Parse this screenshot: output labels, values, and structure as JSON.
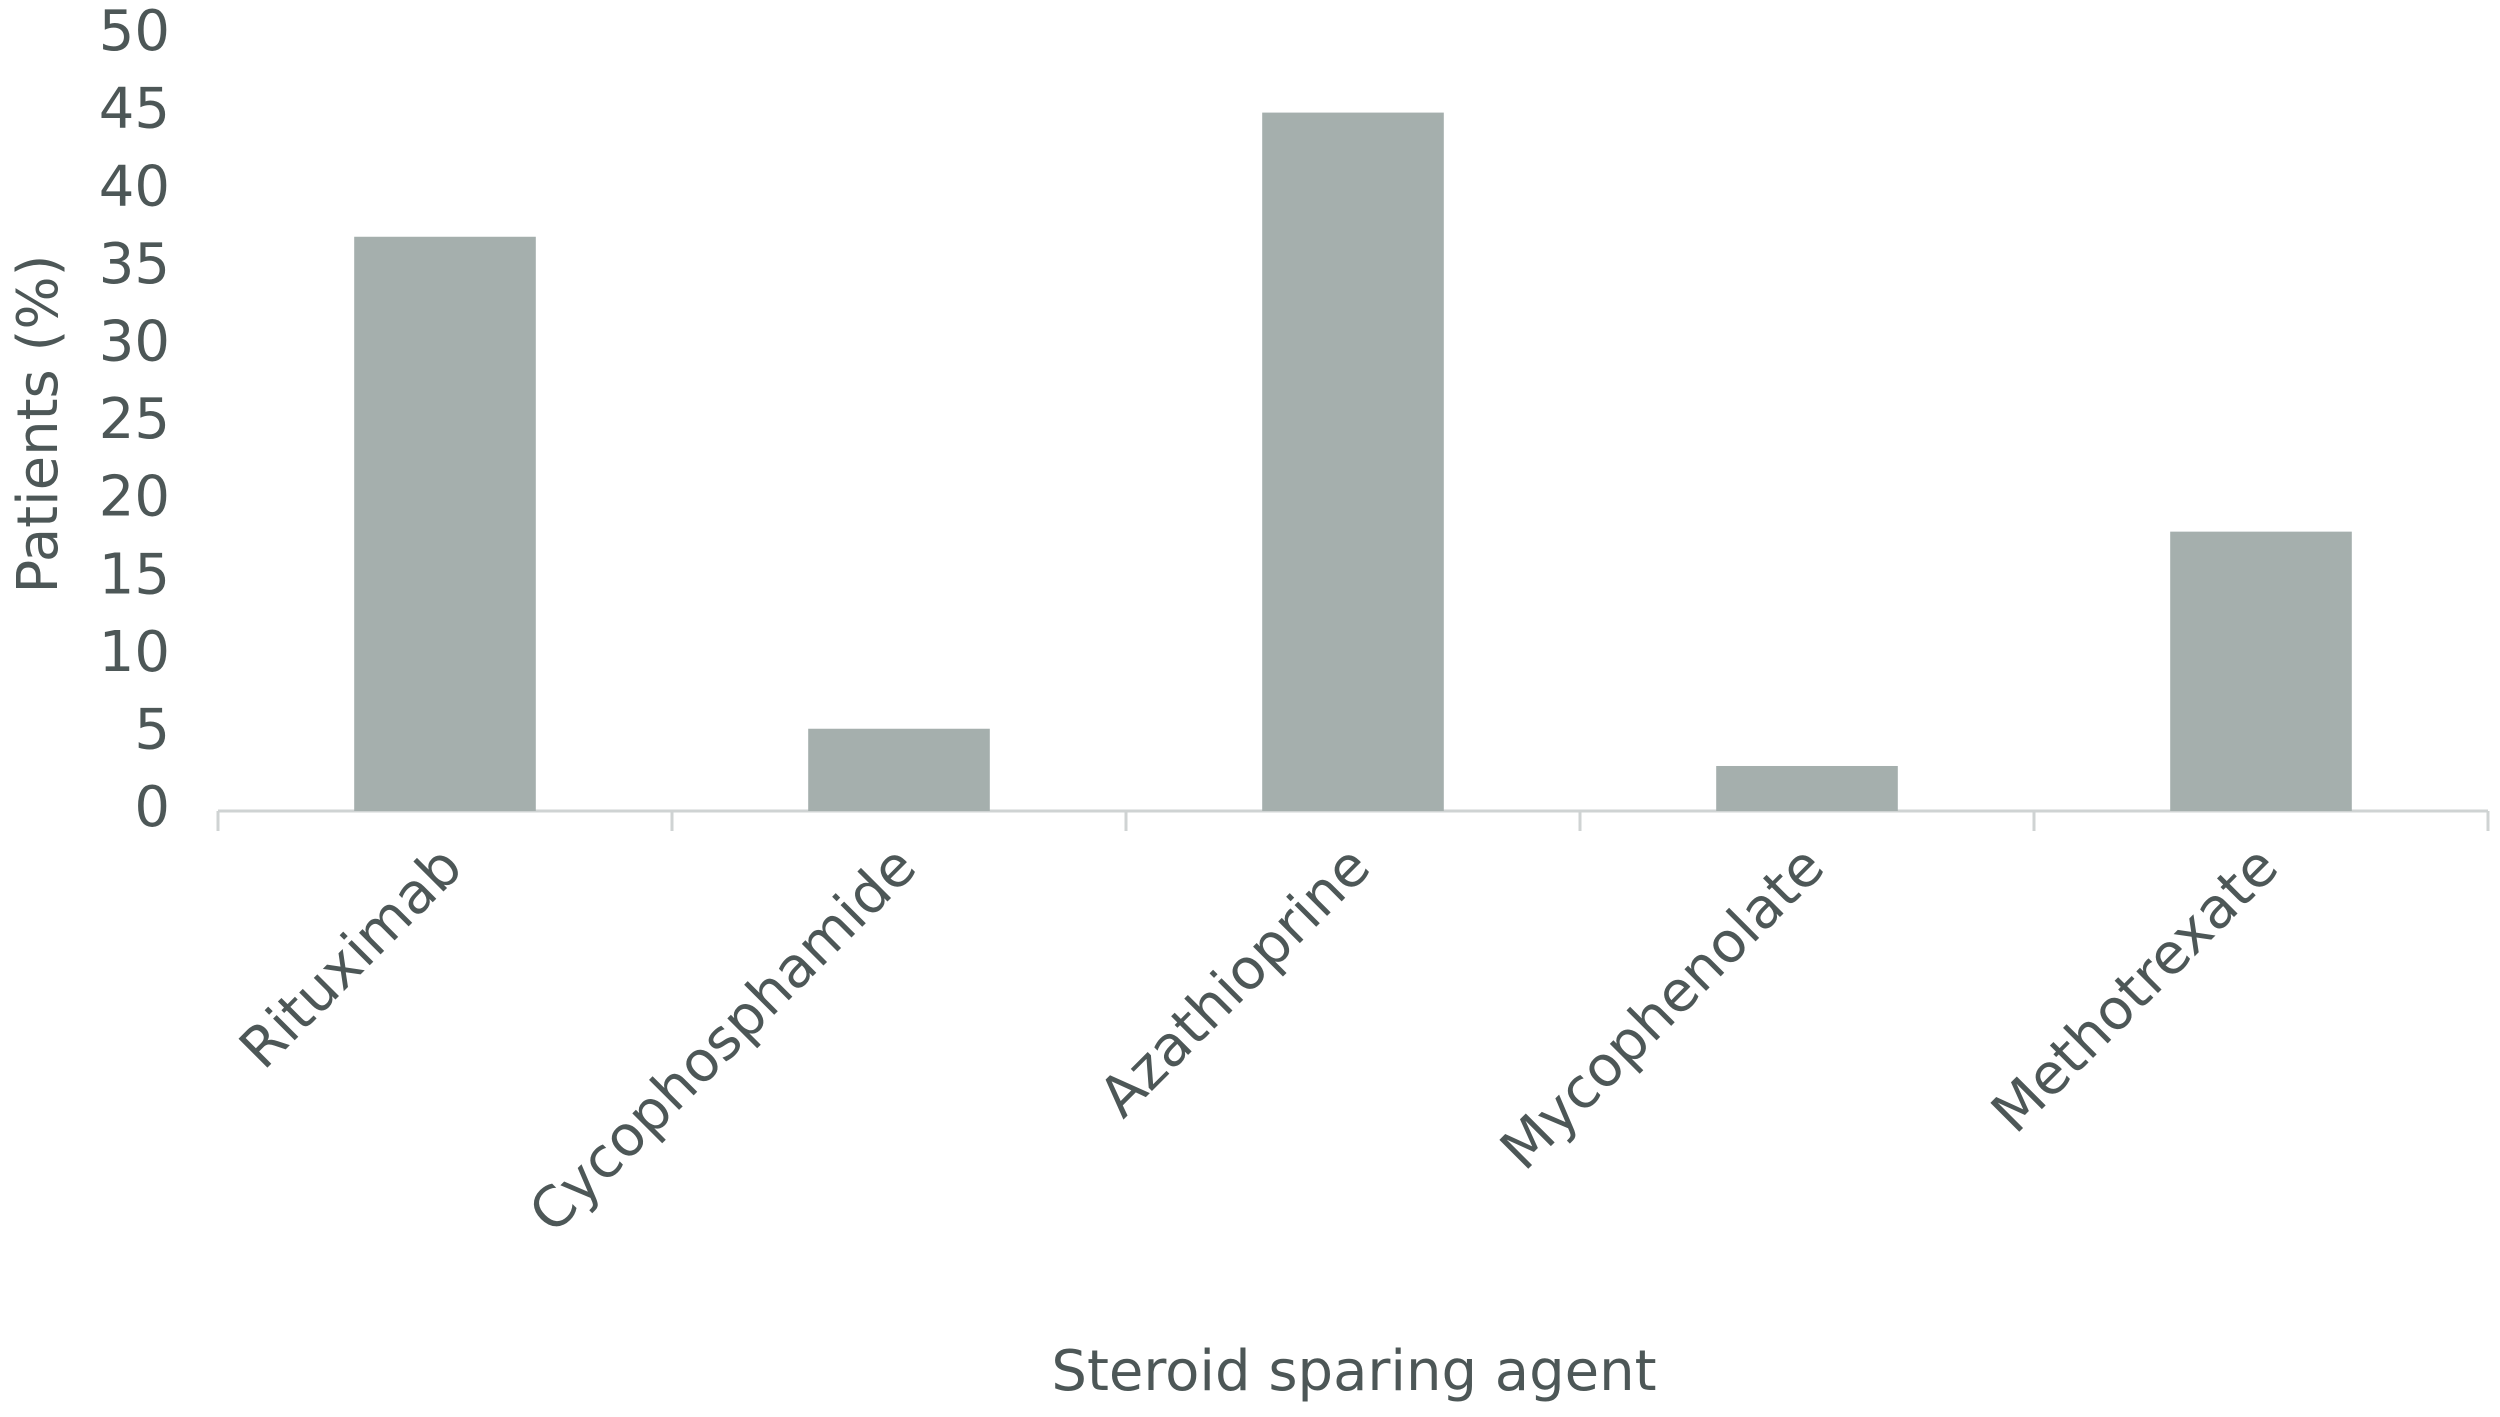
{
  "chart_data": {
    "type": "bar",
    "x_label": "Steroid sparing agent",
    "y_label": "Patients (%)",
    "categories": [
      "Rituximab",
      "Cycophosphamide",
      "Azathioprine",
      "Mycophenolate",
      "Methotrexate"
    ],
    "values": [
      37,
      5.3,
      45,
      2.9,
      18
    ],
    "color": "#a5afad",
    "ylim": [
      0,
      50
    ],
    "yticks": [
      0,
      5,
      10,
      15,
      20,
      25,
      30,
      35,
      40,
      45,
      50
    ],
    "grid": false
  }
}
